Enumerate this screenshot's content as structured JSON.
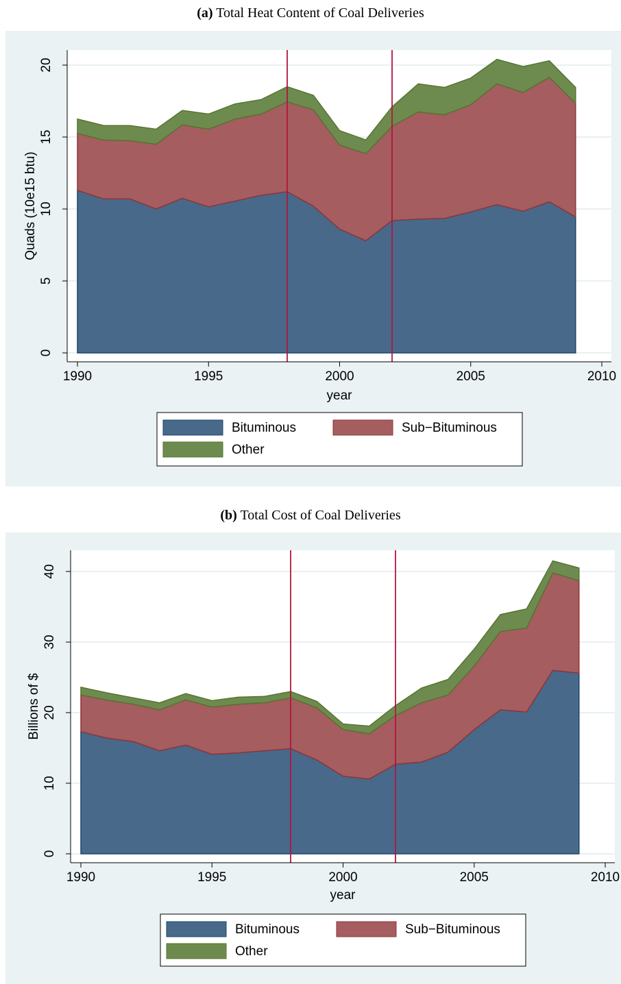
{
  "chart_data": [
    {
      "type": "area",
      "stacked": true,
      "label": "(a)",
      "title": "Total Heat Content of Coal Deliveries",
      "xlabel": "year",
      "ylabel": "Quads (10e15 btu)",
      "x": [
        1990,
        1991,
        1992,
        1993,
        1994,
        1995,
        1996,
        1997,
        1998,
        1999,
        2000,
        2001,
        2002,
        2003,
        2004,
        2005,
        2006,
        2007,
        2008,
        2009
      ],
      "series": [
        {
          "name": "Bituminous",
          "color": "#48698a",
          "values": [
            11.3,
            10.7,
            10.7,
            10.0,
            10.75,
            10.15,
            10.55,
            10.95,
            11.2,
            10.2,
            8.6,
            7.8,
            9.2,
            9.3,
            9.35,
            9.8,
            10.3,
            9.85,
            10.5,
            9.45
          ]
        },
        {
          "name": "Sub−Bituminous",
          "color": "#a55d5f",
          "values": [
            3.95,
            4.1,
            4.05,
            4.5,
            5.1,
            5.4,
            5.7,
            5.65,
            6.25,
            6.7,
            5.85,
            6.05,
            6.55,
            7.45,
            7.2,
            7.45,
            8.4,
            8.25,
            8.65,
            7.9
          ]
        },
        {
          "name": "Other",
          "color": "#6e8b4f",
          "values": [
            1.0,
            1.0,
            1.05,
            1.05,
            1.0,
            1.05,
            1.05,
            1.0,
            1.05,
            1.0,
            1.0,
            0.95,
            1.35,
            1.95,
            1.9,
            1.85,
            1.7,
            1.8,
            1.15,
            1.1
          ]
        }
      ],
      "xlim": [
        1990,
        2010
      ],
      "xticks": [
        1990,
        1995,
        2000,
        2005,
        2010
      ],
      "ylim": [
        0,
        20
      ],
      "yticks": [
        0,
        5,
        10,
        15,
        20
      ],
      "grid": true,
      "vlines": [
        1998,
        2002
      ],
      "vline_color": "#b0163e"
    },
    {
      "type": "area",
      "stacked": true,
      "label": "(b)",
      "title": "Total Cost of Coal Deliveries",
      "xlabel": "year",
      "ylabel": "Billions of $",
      "x": [
        1990,
        1991,
        1992,
        1993,
        1994,
        1995,
        1996,
        1997,
        1998,
        1999,
        2000,
        2001,
        2002,
        2003,
        2004,
        2005,
        2006,
        2007,
        2008,
        2009
      ],
      "series": [
        {
          "name": "Bituminous",
          "color": "#48698a",
          "values": [
            17.3,
            16.4,
            15.9,
            14.6,
            15.4,
            14.1,
            14.3,
            14.6,
            14.9,
            13.3,
            11.0,
            10.6,
            12.7,
            13.0,
            14.4,
            17.6,
            20.4,
            20.1,
            26.0,
            25.6
          ]
        },
        {
          "name": "Sub−Bituminous",
          "color": "#a55d5f",
          "values": [
            5.2,
            5.4,
            5.3,
            5.8,
            6.4,
            6.7,
            6.9,
            6.8,
            7.2,
            7.4,
            6.6,
            6.4,
            6.9,
            8.4,
            8.1,
            9.0,
            11.1,
            11.9,
            13.8,
            13.1
          ]
        },
        {
          "name": "Other",
          "color": "#6e8b4f",
          "values": [
            1.1,
            1.0,
            0.9,
            1.0,
            0.9,
            0.9,
            1.0,
            0.9,
            0.9,
            0.9,
            0.8,
            1.1,
            1.4,
            2.1,
            2.2,
            2.4,
            2.4,
            2.7,
            1.7,
            1.8
          ]
        }
      ],
      "xlim": [
        1990,
        2010
      ],
      "xticks": [
        1990,
        1995,
        2000,
        2005,
        2010
      ],
      "ylim": [
        0,
        40
      ],
      "yticks": [
        0,
        10,
        20,
        30,
        40
      ],
      "grid": true,
      "vlines": [
        1998,
        2002
      ],
      "vline_color": "#b0163e"
    }
  ]
}
